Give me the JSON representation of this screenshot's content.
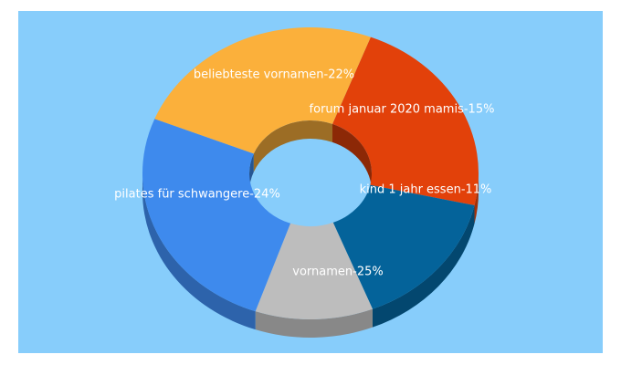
{
  "chart_data": {
    "type": "pie",
    "style": "3d-donut",
    "slices": [
      {
        "label": "beliebteste vornamen",
        "value": 22,
        "display": "beliebteste vornamen-22%",
        "color": "#e2410a"
      },
      {
        "label": "forum januar 2020 mamis",
        "value": 15,
        "display": "forum januar 2020 mamis-15%",
        "color": "#04639a"
      },
      {
        "label": "kind 1 jahr essen",
        "value": 11,
        "display": "kind 1 jahr essen-11%",
        "color": "#bdbdbd"
      },
      {
        "label": "vornamen",
        "value": 25,
        "display": "vornamen-25%",
        "color": "#3e8aed"
      },
      {
        "label": "pilates für schwangere",
        "value": 24,
        "display": "pilates für schwangere-24%",
        "color": "#fbb03b"
      }
    ],
    "background_color": "#87cdfb",
    "legend": "none"
  }
}
